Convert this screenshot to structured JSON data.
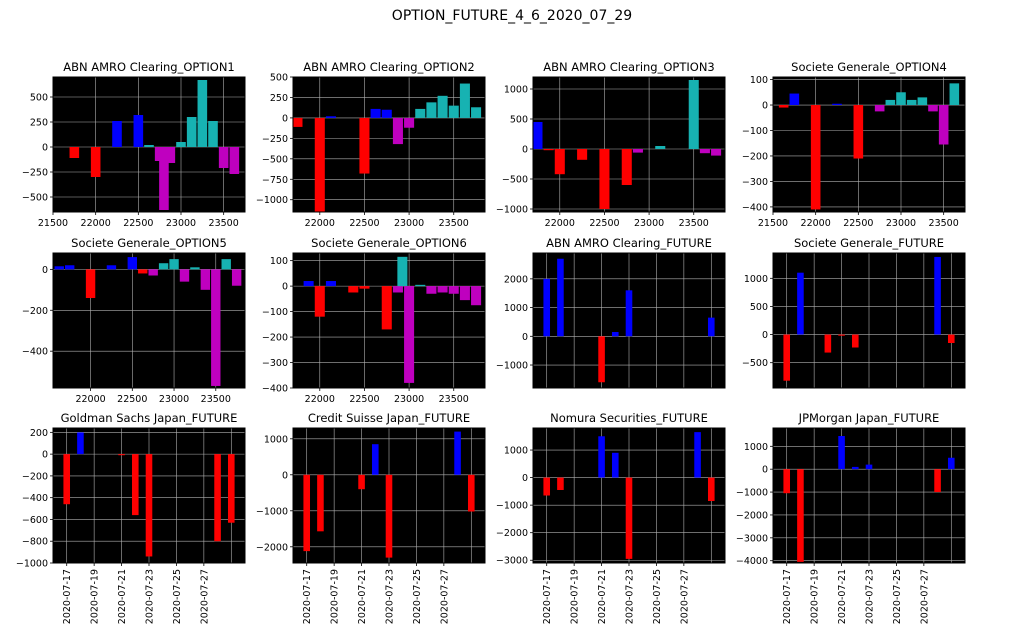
{
  "figure": {
    "title": "OPTION_FUTURE_4_6_2020_07_29"
  },
  "colors": {
    "background": "#000000",
    "grid": "#b0b0b0",
    "red": "#ff0000",
    "blue": "#0000ff",
    "cyan": "#17b2b2",
    "magenta": "#bf00bf"
  },
  "chart_data": [
    {
      "type": "bar",
      "title": "ABN AMRO Clearing_OPTION1",
      "x_tick_labels": [
        "21500",
        "22000",
        "22500",
        "23000",
        "23500"
      ],
      "y_tick_labels": [
        "500",
        "250",
        "0",
        "−250",
        "−500"
      ],
      "xlim": [
        21500,
        23750
      ],
      "ylim": [
        -650,
        700
      ],
      "bars": [
        {
          "x": 21750,
          "value": -110,
          "color": "red"
        },
        {
          "x": 22000,
          "value": -300,
          "color": "red"
        },
        {
          "x": 22250,
          "value": 260,
          "color": "blue"
        },
        {
          "x": 22500,
          "value": 320,
          "color": "blue"
        },
        {
          "x": 22625,
          "value": 20,
          "color": "cyan"
        },
        {
          "x": 22750,
          "value": -140,
          "color": "magenta"
        },
        {
          "x": 22875,
          "value": -160,
          "color": "magenta"
        },
        {
          "x": 22800,
          "value": -630,
          "color": "magenta"
        },
        {
          "x": 23000,
          "value": 50,
          "color": "cyan"
        },
        {
          "x": 23125,
          "value": 300,
          "color": "cyan"
        },
        {
          "x": 23250,
          "value": 670,
          "color": "cyan"
        },
        {
          "x": 23375,
          "value": 260,
          "color": "cyan"
        },
        {
          "x": 23500,
          "value": -210,
          "color": "magenta"
        },
        {
          "x": 23625,
          "value": -270,
          "color": "magenta"
        }
      ]
    },
    {
      "type": "bar",
      "title": "ABN AMRO Clearing_OPTION2",
      "x_tick_labels": [
        "22000",
        "22500",
        "23000",
        "23500"
      ],
      "y_tick_labels": [
        "500",
        "250",
        "0",
        "−250",
        "−500",
        "−750",
        "−1000"
      ],
      "xlim": [
        21700,
        23850
      ],
      "ylim": [
        -1150,
        500
      ],
      "bars": [
        {
          "x": 21750,
          "value": -110,
          "color": "red"
        },
        {
          "x": 22000,
          "value": -1150,
          "color": "red"
        },
        {
          "x": 22125,
          "value": 20,
          "color": "blue"
        },
        {
          "x": 22500,
          "value": -680,
          "color": "red"
        },
        {
          "x": 22625,
          "value": 110,
          "color": "blue"
        },
        {
          "x": 22750,
          "value": 100,
          "color": "blue"
        },
        {
          "x": 22875,
          "value": -320,
          "color": "magenta"
        },
        {
          "x": 23000,
          "value": -120,
          "color": "magenta"
        },
        {
          "x": 23125,
          "value": 110,
          "color": "cyan"
        },
        {
          "x": 23250,
          "value": 190,
          "color": "cyan"
        },
        {
          "x": 23375,
          "value": 270,
          "color": "cyan"
        },
        {
          "x": 23500,
          "value": 150,
          "color": "cyan"
        },
        {
          "x": 23625,
          "value": 420,
          "color": "cyan"
        },
        {
          "x": 23750,
          "value": 130,
          "color": "cyan"
        }
      ]
    },
    {
      "type": "bar",
      "title": "ABN AMRO Clearing_OPTION3",
      "x_tick_labels": [
        "22000",
        "22500",
        "23000",
        "23500"
      ],
      "y_tick_labels": [
        "1000",
        "500",
        "0",
        "−500",
        "−1000"
      ],
      "xlim": [
        21700,
        23850
      ],
      "ylim": [
        -1050,
        1200
      ],
      "bars": [
        {
          "x": 21750,
          "value": 450,
          "color": "blue"
        },
        {
          "x": 21875,
          "value": -20,
          "color": "red"
        },
        {
          "x": 22000,
          "value": -420,
          "color": "red"
        },
        {
          "x": 22250,
          "value": -180,
          "color": "red"
        },
        {
          "x": 22500,
          "value": -1000,
          "color": "red"
        },
        {
          "x": 22750,
          "value": -600,
          "color": "red"
        },
        {
          "x": 22875,
          "value": -60,
          "color": "magenta"
        },
        {
          "x": 23125,
          "value": 50,
          "color": "cyan"
        },
        {
          "x": 23500,
          "value": 1150,
          "color": "cyan"
        },
        {
          "x": 23625,
          "value": -70,
          "color": "magenta"
        },
        {
          "x": 23750,
          "value": -110,
          "color": "magenta"
        }
      ]
    },
    {
      "type": "bar",
      "title": "Societe Generale_OPTION4",
      "x_tick_labels": [
        "21500",
        "22000",
        "22500",
        "23000",
        "23500"
      ],
      "y_tick_labels": [
        "100",
        "0",
        "−100",
        "−200",
        "−300",
        "−400"
      ],
      "xlim": [
        21500,
        23750
      ],
      "ylim": [
        -420,
        110
      ],
      "bars": [
        {
          "x": 21625,
          "value": -10,
          "color": "red"
        },
        {
          "x": 21750,
          "value": 45,
          "color": "blue"
        },
        {
          "x": 22000,
          "value": -410,
          "color": "red"
        },
        {
          "x": 22250,
          "value": 5,
          "color": "blue"
        },
        {
          "x": 22500,
          "value": -210,
          "color": "red"
        },
        {
          "x": 22750,
          "value": -25,
          "color": "magenta"
        },
        {
          "x": 22875,
          "value": 20,
          "color": "cyan"
        },
        {
          "x": 23000,
          "value": 50,
          "color": "cyan"
        },
        {
          "x": 23125,
          "value": 20,
          "color": "cyan"
        },
        {
          "x": 23250,
          "value": 30,
          "color": "cyan"
        },
        {
          "x": 23375,
          "value": -25,
          "color": "magenta"
        },
        {
          "x": 23500,
          "value": -155,
          "color": "magenta"
        },
        {
          "x": 23625,
          "value": 85,
          "color": "cyan"
        }
      ]
    },
    {
      "type": "bar",
      "title": "Societe Generale_OPTION5",
      "x_tick_labels": [
        "22000",
        "22500",
        "23000",
        "23500"
      ],
      "y_tick_labels": [
        "0",
        "−200",
        "−400"
      ],
      "xlim": [
        21550,
        23850
      ],
      "ylim": [
        -580,
        80
      ],
      "bars": [
        {
          "x": 21625,
          "value": 15,
          "color": "blue"
        },
        {
          "x": 21750,
          "value": 20,
          "color": "blue"
        },
        {
          "x": 22000,
          "value": -140,
          "color": "red"
        },
        {
          "x": 22250,
          "value": 20,
          "color": "blue"
        },
        {
          "x": 22500,
          "value": 60,
          "color": "blue"
        },
        {
          "x": 22625,
          "value": -20,
          "color": "red"
        },
        {
          "x": 22750,
          "value": -30,
          "color": "magenta"
        },
        {
          "x": 22875,
          "value": 30,
          "color": "cyan"
        },
        {
          "x": 23000,
          "value": 50,
          "color": "cyan"
        },
        {
          "x": 23125,
          "value": -60,
          "color": "magenta"
        },
        {
          "x": 23250,
          "value": 10,
          "color": "cyan"
        },
        {
          "x": 23375,
          "value": -100,
          "color": "magenta"
        },
        {
          "x": 23500,
          "value": -570,
          "color": "magenta"
        },
        {
          "x": 23625,
          "value": 50,
          "color": "cyan"
        },
        {
          "x": 23750,
          "value": -80,
          "color": "magenta"
        }
      ]
    },
    {
      "type": "bar",
      "title": "Societe Generale_OPTION6",
      "x_tick_labels": [
        "22000",
        "22500",
        "23000",
        "23500"
      ],
      "y_tick_labels": [
        "100",
        "0",
        "−100",
        "−200",
        "−300",
        "−400"
      ],
      "xlim": [
        21700,
        23850
      ],
      "ylim": [
        -400,
        130
      ],
      "bars": [
        {
          "x": 21875,
          "value": 20,
          "color": "blue"
        },
        {
          "x": 22000,
          "value": -120,
          "color": "red"
        },
        {
          "x": 22125,
          "value": 20,
          "color": "blue"
        },
        {
          "x": 22375,
          "value": -25,
          "color": "red"
        },
        {
          "x": 22500,
          "value": -10,
          "color": "red"
        },
        {
          "x": 22750,
          "value": -170,
          "color": "red"
        },
        {
          "x": 22875,
          "value": -25,
          "color": "magenta"
        },
        {
          "x": 22925,
          "value": 115,
          "color": "cyan"
        },
        {
          "x": 23000,
          "value": -380,
          "color": "magenta"
        },
        {
          "x": 23125,
          "value": 5,
          "color": "cyan"
        },
        {
          "x": 23250,
          "value": -30,
          "color": "magenta"
        },
        {
          "x": 23375,
          "value": -25,
          "color": "magenta"
        },
        {
          "x": 23500,
          "value": -30,
          "color": "magenta"
        },
        {
          "x": 23625,
          "value": -55,
          "color": "magenta"
        },
        {
          "x": 23750,
          "value": -75,
          "color": "magenta"
        }
      ]
    },
    {
      "type": "bar",
      "title": "ABN AMRO Clearing_FUTURE",
      "x_tick_labels": [],
      "y_tick_labels": [
        "2000",
        "1000",
        "0",
        "−1000"
      ],
      "xlim": [
        0,
        14
      ],
      "ylim": [
        -1800,
        2900
      ],
      "bars": [
        {
          "x": 1,
          "value": 2000,
          "color": "blue"
        },
        {
          "x": 2,
          "value": 2700,
          "color": "blue"
        },
        {
          "x": 5,
          "value": -1600,
          "color": "red"
        },
        {
          "x": 6,
          "value": 150,
          "color": "blue"
        },
        {
          "x": 7,
          "value": 1600,
          "color": "blue"
        },
        {
          "x": 13,
          "value": 650,
          "color": "blue"
        }
      ]
    },
    {
      "type": "bar",
      "title": "Societe Generale_FUTURE",
      "x_tick_labels": [],
      "y_tick_labels": [
        "1000",
        "500",
        "0",
        "−500"
      ],
      "xlim": [
        0,
        14
      ],
      "ylim": [
        -950,
        1450
      ],
      "bars": [
        {
          "x": 1,
          "value": -820,
          "color": "red"
        },
        {
          "x": 2,
          "value": 1100,
          "color": "blue"
        },
        {
          "x": 4,
          "value": -320,
          "color": "red"
        },
        {
          "x": 5,
          "value": -20,
          "color": "red"
        },
        {
          "x": 6,
          "value": -230,
          "color": "red"
        },
        {
          "x": 12,
          "value": 1380,
          "color": "blue"
        },
        {
          "x": 13,
          "value": -150,
          "color": "red"
        }
      ]
    },
    {
      "type": "bar",
      "title": "Goldman Sachs Japan_FUTURE",
      "x_tick_labels": [
        "2020-07-17",
        "2020-07-19",
        "2020-07-21",
        "2020-07-23",
        "2020-07-25",
        "2020-07-27"
      ],
      "y_tick_labels": [
        "200",
        "0",
        "−200",
        "−400",
        "−600",
        "−800",
        "−1000"
      ],
      "xlim": [
        0,
        14
      ],
      "ylim": [
        -1000,
        240
      ],
      "bars": [
        {
          "x": 1,
          "value": -460,
          "color": "red"
        },
        {
          "x": 2,
          "value": 200,
          "color": "blue"
        },
        {
          "x": 5,
          "value": -10,
          "color": "red"
        },
        {
          "x": 6,
          "value": -560,
          "color": "red"
        },
        {
          "x": 7,
          "value": -940,
          "color": "red"
        },
        {
          "x": 12,
          "value": -800,
          "color": "red"
        },
        {
          "x": 13,
          "value": -630,
          "color": "red"
        }
      ]
    },
    {
      "type": "bar",
      "title": "Credit Suisse Japan_FUTURE",
      "x_tick_labels": [
        "2020-07-17",
        "2020-07-19",
        "2020-07-21",
        "2020-07-23",
        "2020-07-25",
        "2020-07-27"
      ],
      "y_tick_labels": [
        "1000",
        "0",
        "−1000",
        "−2000"
      ],
      "xlim": [
        0,
        14
      ],
      "ylim": [
        -2450,
        1300
      ],
      "bars": [
        {
          "x": 1,
          "value": -2120,
          "color": "red"
        },
        {
          "x": 2,
          "value": -1570,
          "color": "red"
        },
        {
          "x": 5,
          "value": -400,
          "color": "red"
        },
        {
          "x": 6,
          "value": 850,
          "color": "blue"
        },
        {
          "x": 7,
          "value": -2300,
          "color": "red"
        },
        {
          "x": 12,
          "value": 1200,
          "color": "blue"
        },
        {
          "x": 13,
          "value": -1020,
          "color": "red"
        }
      ]
    },
    {
      "type": "bar",
      "title": "Nomura Securities_FUTURE",
      "x_tick_labels": [
        "2020-07-17",
        "2020-07-19",
        "2020-07-21",
        "2020-07-23",
        "2020-07-25",
        "2020-07-27"
      ],
      "y_tick_labels": [
        "1000",
        "0",
        "−1000",
        "−2000",
        "−3000"
      ],
      "xlim": [
        0,
        14
      ],
      "ylim": [
        -3100,
        1800
      ],
      "bars": [
        {
          "x": 1,
          "value": -650,
          "color": "red"
        },
        {
          "x": 2,
          "value": -450,
          "color": "red"
        },
        {
          "x": 5,
          "value": 1500,
          "color": "blue"
        },
        {
          "x": 6,
          "value": 900,
          "color": "blue"
        },
        {
          "x": 7,
          "value": -2950,
          "color": "red"
        },
        {
          "x": 12,
          "value": 1650,
          "color": "blue"
        },
        {
          "x": 13,
          "value": -850,
          "color": "red"
        }
      ]
    },
    {
      "type": "bar",
      "title": "JPMorgan Japan_FUTURE",
      "x_tick_labels": [
        "2020-07-17",
        "2020-07-19",
        "2020-07-21",
        "2020-07-23",
        "2020-07-25",
        "2020-07-27"
      ],
      "y_tick_labels": [
        "1000",
        "0",
        "−1000",
        "−2000",
        "−3000",
        "−4000"
      ],
      "xlim": [
        0,
        14
      ],
      "ylim": [
        -4100,
        1800
      ],
      "bars": [
        {
          "x": 1,
          "value": -1050,
          "color": "red"
        },
        {
          "x": 2,
          "value": -4050,
          "color": "red"
        },
        {
          "x": 5,
          "value": 1450,
          "color": "blue"
        },
        {
          "x": 6,
          "value": 100,
          "color": "blue"
        },
        {
          "x": 7,
          "value": 200,
          "color": "blue"
        },
        {
          "x": 12,
          "value": -1000,
          "color": "red"
        },
        {
          "x": 13,
          "value": 500,
          "color": "blue"
        }
      ]
    }
  ]
}
